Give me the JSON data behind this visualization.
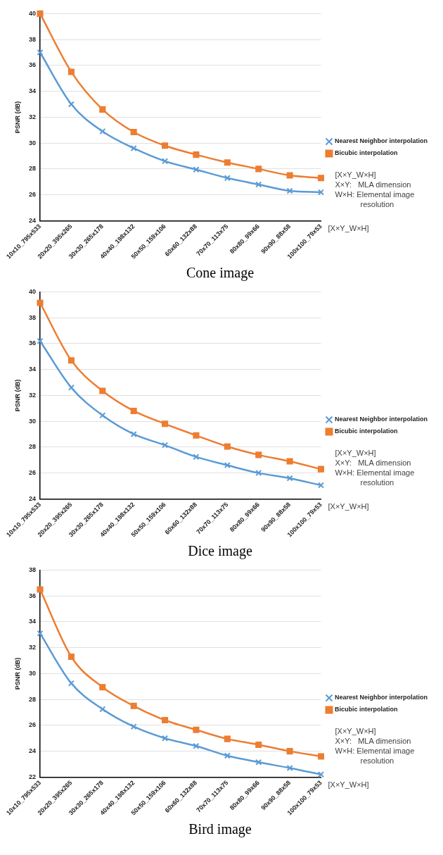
{
  "chart_data": [
    {
      "type": "line",
      "title": "Cone image",
      "ylabel": "PSNR (dB)",
      "xlabel": "[X×Y_W×H]",
      "annotations": [
        "[X×Y_W×H]",
        "X×Y:   MLA dimension",
        "W×H: Elemental image resolution"
      ],
      "categories": [
        "10x10_795x533",
        "20x20_395x265",
        "30x30_265x178",
        "40x40_198x132",
        "50x50_159x106",
        "60x60_132x88",
        "70x70_113x75",
        "80x80_99x66",
        "90x90_88x58",
        "100x100_79x53"
      ],
      "ylim": [
        24,
        40
      ],
      "yticks": [
        24,
        26,
        28,
        30,
        32,
        34,
        36,
        38,
        40
      ],
      "grid": "y",
      "legend": "right",
      "series": [
        {
          "name": "Nearest Neighbor interpolation",
          "color": "#5b9bd5",
          "marker": "cross",
          "values": [
            37.0,
            33.0,
            30.9,
            29.6,
            28.6,
            27.95,
            27.3,
            26.8,
            26.3,
            26.2
          ]
        },
        {
          "name": "Bicubic interpolation",
          "color": "#ed7d31",
          "marker": "square",
          "values": [
            40,
            35.5,
            32.6,
            30.85,
            29.8,
            29.1,
            28.5,
            28.0,
            27.5,
            27.3
          ]
        }
      ]
    },
    {
      "type": "line",
      "title": "Dice image",
      "ylabel": "PSNR (dB)",
      "xlabel": "[X×Y_W×H]",
      "annotations": [
        "[X×Y_W×H]",
        "X×Y:   MLA dimension",
        "W×H: Elemental image resolution"
      ],
      "categories": [
        "10x10_795x533",
        "20x20_395x265",
        "30x30_265x178",
        "40x40_198x132",
        "50x50_159x106",
        "60x60_132x88",
        "70x70_113x75",
        "80x80_99x66",
        "90x90_88x58",
        "100x100_79x53"
      ],
      "ylim": [
        24,
        40
      ],
      "yticks": [
        24,
        26,
        28,
        30,
        32,
        34,
        36,
        38,
        40
      ],
      "grid": "y",
      "legend": "right",
      "series": [
        {
          "name": "Nearest Neighbor interpolation",
          "color": "#5b9bd5",
          "marker": "cross",
          "values": [
            36.2,
            32.6,
            30.45,
            29.0,
            28.15,
            27.25,
            26.6,
            26.0,
            25.6,
            25.05
          ]
        },
        {
          "name": "Bicubic interpolation",
          "color": "#ed7d31",
          "marker": "square",
          "values": [
            39.15,
            34.7,
            32.35,
            30.8,
            29.8,
            28.9,
            28.05,
            27.4,
            26.9,
            26.3
          ]
        }
      ]
    },
    {
      "type": "line",
      "title": "Bird image",
      "ylabel": "PSNR (dB)",
      "xlabel": "[X×Y_W×H]",
      "annotations": [
        "[X×Y_W×H]",
        "X×Y:   MLA dimension",
        "W×H: Elemental image resolution"
      ],
      "categories": [
        "10x10_795x533",
        "20x20_395x265",
        "30x30_265x178",
        "40x40_198x132",
        "50x50_159x106",
        "60x60_132x88",
        "70x70_113x75",
        "80x80_99x66",
        "90x90_88x58",
        "100x100_79x53"
      ],
      "ylim": [
        22,
        38
      ],
      "yticks": [
        22,
        24,
        26,
        28,
        30,
        32,
        34,
        36,
        38
      ],
      "grid": "y",
      "legend": "right",
      "series": [
        {
          "name": "Nearest Neighbor interpolation",
          "color": "#5b9bd5",
          "marker": "cross",
          "values": [
            33.1,
            29.25,
            27.25,
            25.9,
            25.0,
            24.4,
            23.65,
            23.15,
            22.7,
            22.2
          ]
        },
        {
          "name": "Bicubic interpolation",
          "color": "#ed7d31",
          "marker": "square",
          "values": [
            36.5,
            31.3,
            28.95,
            27.5,
            26.4,
            25.65,
            24.95,
            24.5,
            24.0,
            23.6
          ]
        }
      ]
    }
  ]
}
